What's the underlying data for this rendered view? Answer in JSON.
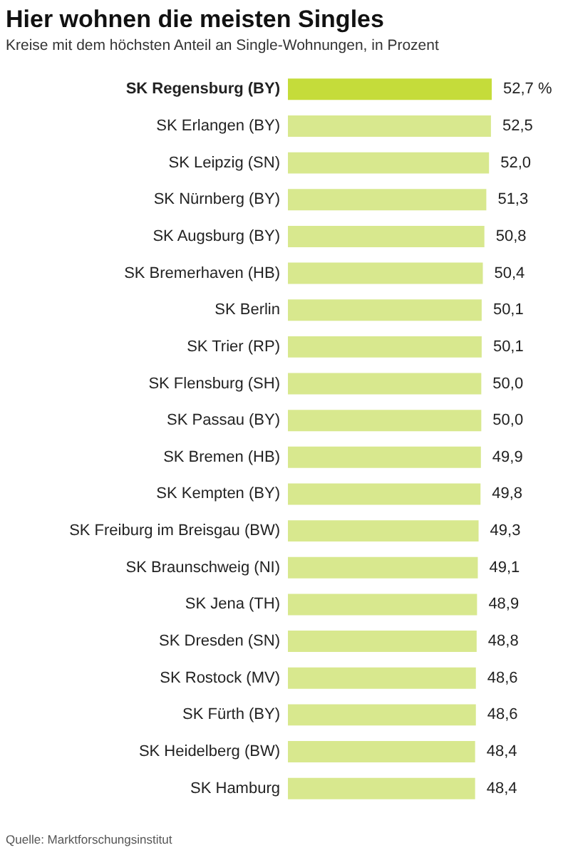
{
  "chart_data": {
    "type": "bar",
    "orientation": "horizontal",
    "title": "Hier wohnen die meisten Singles",
    "subtitle": "Kreise mit dem höchsten Anteil an Single-Wohnungen, in Prozent",
    "categories": [
      "SK Regensburg (BY)",
      "SK Erlangen (BY)",
      "SK Leipzig (SN)",
      "SK Nürnberg (BY)",
      "SK Augsburg (BY)",
      "SK Bremerhaven (HB)",
      "SK Berlin",
      "SK Trier (RP)",
      "SK Flensburg (SH)",
      "SK Passau (BY)",
      "SK Bremen (HB)",
      "SK Kempten (BY)",
      "SK Freiburg im Breisgau (BW)",
      "SK Braunschweig (NI)",
      "SK Jena (TH)",
      "SK Dresden (SN)",
      "SK Rostock (MV)",
      "SK Fürth (BY)",
      "SK Heidelberg (BW)",
      "SK Hamburg"
    ],
    "values": [
      52.7,
      52.5,
      52.0,
      51.3,
      50.8,
      50.4,
      50.1,
      50.1,
      50.0,
      50.0,
      49.9,
      49.8,
      49.3,
      49.1,
      48.9,
      48.8,
      48.6,
      48.6,
      48.4,
      48.4
    ],
    "value_labels": [
      "52,7 %",
      "52,5",
      "52,0",
      "51,3",
      "50,8",
      "50,4",
      "50,1",
      "50,1",
      "50,0",
      "50,0",
      "49,9",
      "49,8",
      "49,3",
      "49,1",
      "48,9",
      "48,8",
      "48,6",
      "48,6",
      "48,4",
      "48,4"
    ],
    "colors": [
      "#c5dc3a",
      "#d8e88e",
      "#d8e88e",
      "#d8e88e",
      "#d8e88e",
      "#d8e88e",
      "#d8e88e",
      "#d8e88e",
      "#d8e88e",
      "#d8e88e",
      "#d8e88e",
      "#d8e88e",
      "#d8e88e",
      "#d8e88e",
      "#d8e88e",
      "#d8e88e",
      "#d8e88e",
      "#d8e88e",
      "#d8e88e",
      "#d8e88e"
    ],
    "annotations": [
      "Quelle: Marktforschungsinstitut"
    ]
  }
}
